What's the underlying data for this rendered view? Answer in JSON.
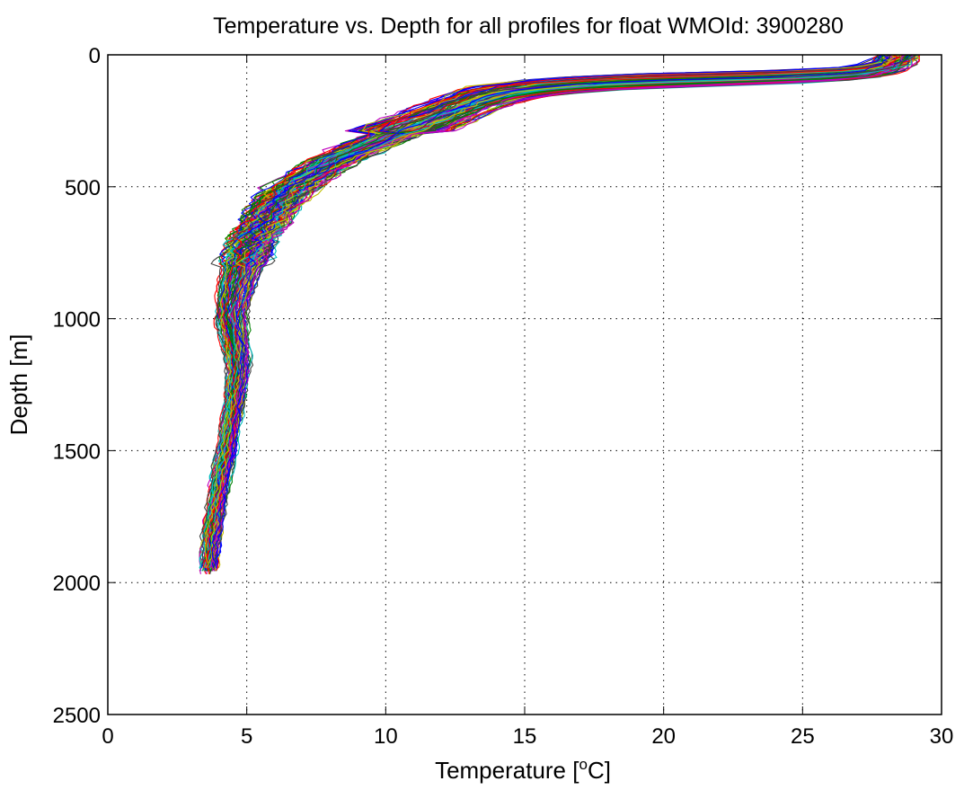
{
  "chart_data": {
    "type": "line",
    "title": "Temperature vs. Depth for all profiles for float WMOId: 3900280",
    "xlabel": {
      "prefix": "Temperature [",
      "superscript": "o",
      "suffix": "C]"
    },
    "ylabel": "Depth [m]",
    "xlim": [
      0,
      30
    ],
    "ylim": [
      0,
      2500
    ],
    "y_reversed": true,
    "grid": true,
    "grid_style": "dotted",
    "xticks": [
      0,
      5,
      10,
      15,
      20,
      25,
      30
    ],
    "yticks": [
      0,
      500,
      1000,
      1500,
      2000,
      2500
    ],
    "xtick_labels": [
      "0",
      "5",
      "10",
      "15",
      "20",
      "25",
      "30"
    ],
    "ytick_labels": [
      "0",
      "500",
      "1000",
      "1500",
      "2000",
      "2500"
    ],
    "series_colors": [
      "#0000ff",
      "#008000",
      "#ff0000",
      "#00bfbf",
      "#bf00bf",
      "#bfbf00",
      "#404040"
    ],
    "profile_count": 120,
    "representative_profile": {
      "depth": [
        0,
        20,
        40,
        60,
        70,
        80,
        90,
        100,
        115,
        130,
        150,
        170,
        200,
        240,
        280,
        320,
        360,
        400,
        450,
        500,
        550,
        600,
        650,
        700,
        750,
        800,
        850,
        900,
        950,
        1000,
        1100,
        1200,
        1300,
        1400,
        1500,
        1600,
        1700,
        1800,
        1900,
        1970
      ],
      "temperature": [
        28.6,
        28.5,
        28.2,
        27.5,
        26.5,
        24.5,
        21.0,
        18.0,
        16.0,
        14.8,
        13.9,
        13.3,
        12.6,
        11.7,
        10.8,
        9.9,
        9.0,
        8.2,
        7.4,
        6.7,
        6.2,
        5.8,
        5.5,
        5.2,
        5.0,
        4.8,
        4.65,
        4.55,
        4.45,
        4.4,
        4.55,
        4.65,
        4.55,
        4.4,
        4.25,
        4.05,
        3.9,
        3.75,
        3.65,
        3.6
      ]
    }
  }
}
